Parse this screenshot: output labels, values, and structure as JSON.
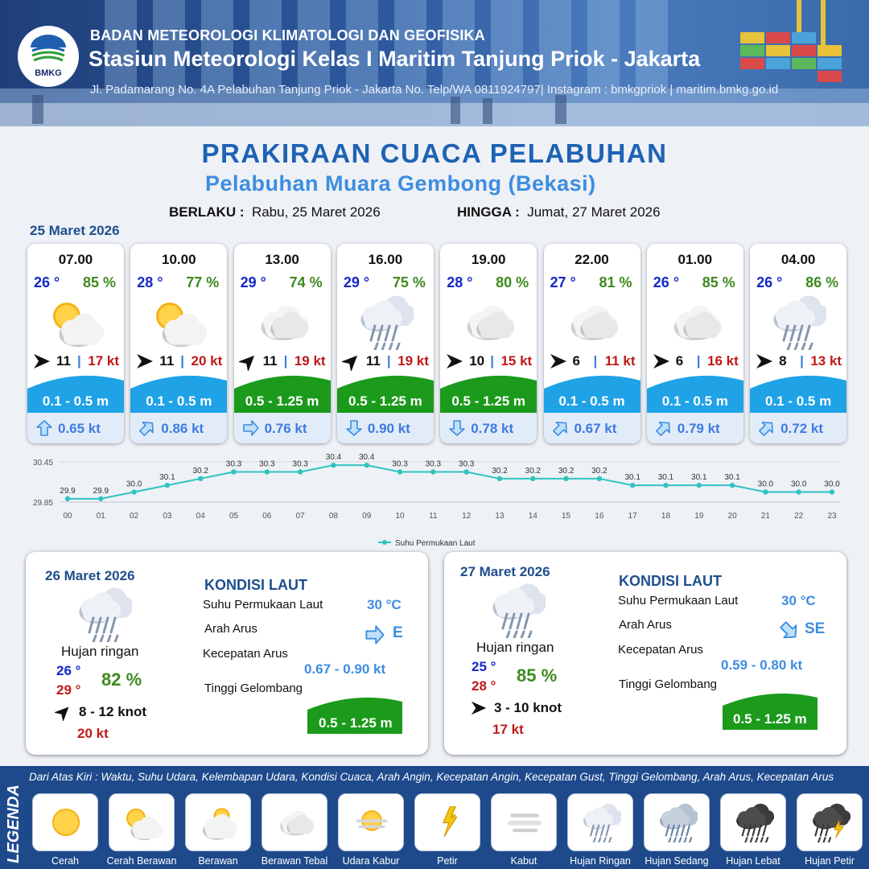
{
  "header": {
    "logo_text": "BMKG",
    "agency": "BADAN METEOROLOGI KLIMATOLOGI DAN GEOFISIKA",
    "station": "Stasiun Meteorologi Kelas I Maritim Tanjung Priok - Jakarta",
    "address": "Jl. Padamarang No. 4A Pelabuhan Tanjung Priok - Jakarta No. Telp/WA 0811924797| Instagram : bmkgpriok | maritim.bmkg.go.id"
  },
  "title": "PRAKIRAAN CUACA PELABUHAN",
  "subtitle": "Pelabuhan Muara Gembong (Bekasi)",
  "validity": {
    "from_label": "BERLAKU :",
    "from_value": "Rabu, 25 Maret 2026",
    "to_label": "HINGGA :",
    "to_value": "Jumat, 27 Maret 2026"
  },
  "today_date": "25 Maret 2026",
  "forecasts": [
    {
      "time": "07.00",
      "temp": "26 °",
      "hum": "85 %",
      "icon": "cerah-berawan",
      "wind_dir": "east",
      "wind": "11",
      "gust": "17 kt",
      "wave": "0.1 - 0.5 m",
      "wave_level": "low",
      "cur_dir": "north",
      "current": "0.65 kt"
    },
    {
      "time": "10.00",
      "temp": "28 °",
      "hum": "77 %",
      "icon": "cerah-berawan",
      "wind_dir": "east",
      "wind": "11",
      "gust": "20 kt",
      "wave": "0.1 - 0.5 m",
      "wave_level": "low",
      "cur_dir": "northeast",
      "current": "0.86 kt"
    },
    {
      "time": "13.00",
      "temp": "29 °",
      "hum": "74 %",
      "icon": "berawan-tebal",
      "wind_dir": "northeast",
      "wind": "11",
      "gust": "19 kt",
      "wave": "0.5 - 1.25 m",
      "wave_level": "moderate",
      "cur_dir": "east",
      "current": "0.76 kt"
    },
    {
      "time": "16.00",
      "temp": "29 °",
      "hum": "75 %",
      "icon": "hujan-ringan",
      "wind_dir": "northeast",
      "wind": "11",
      "gust": "19 kt",
      "wave": "0.5 - 1.25 m",
      "wave_level": "moderate",
      "cur_dir": "south",
      "current": "0.90 kt"
    },
    {
      "time": "19.00",
      "temp": "28 °",
      "hum": "80 %",
      "icon": "berawan-tebal",
      "wind_dir": "east",
      "wind": "10",
      "gust": "15 kt",
      "wave": "0.5 - 1.25 m",
      "wave_level": "moderate",
      "cur_dir": "south",
      "current": "0.78 kt"
    },
    {
      "time": "22.00",
      "temp": "27 °",
      "hum": "81 %",
      "icon": "berawan-tebal",
      "wind_dir": "east",
      "wind": "6",
      "gust": "11 kt",
      "wave": "0.1 - 0.5 m",
      "wave_level": "low",
      "cur_dir": "northeast",
      "current": "0.67 kt"
    },
    {
      "time": "01.00",
      "temp": "26 °",
      "hum": "85 %",
      "icon": "berawan-tebal",
      "wind_dir": "east",
      "wind": "6",
      "gust": "16 kt",
      "wave": "0.1 - 0.5 m",
      "wave_level": "low",
      "cur_dir": "northeast",
      "current": "0.79 kt"
    },
    {
      "time": "04.00",
      "temp": "26 °",
      "hum": "86 %",
      "icon": "hujan-ringan",
      "wind_dir": "east",
      "wind": "8",
      "gust": "13 kt",
      "wave": "0.1 - 0.5 m",
      "wave_level": "low",
      "cur_dir": "northeast",
      "current": "0.72 kt"
    }
  ],
  "chart_data": {
    "type": "line",
    "x": [
      "00",
      "01",
      "02",
      "03",
      "04",
      "05",
      "06",
      "07",
      "08",
      "09",
      "10",
      "11",
      "12",
      "13",
      "14",
      "15",
      "16",
      "17",
      "18",
      "19",
      "20",
      "21",
      "22",
      "23"
    ],
    "series": [
      {
        "name": "Suhu Permukaan Laut",
        "values": [
          29.9,
          29.9,
          30.0,
          30.1,
          30.2,
          30.3,
          30.3,
          30.3,
          30.4,
          30.4,
          30.3,
          30.3,
          30.3,
          30.2,
          30.2,
          30.2,
          30.2,
          30.1,
          30.1,
          30.1,
          30.1,
          30.0,
          30.0,
          30.0
        ]
      }
    ],
    "ylim": [
      29.85,
      30.45
    ],
    "y_ticks": [
      "30.45",
      "29.85"
    ],
    "grid": true,
    "legend": "bottom-center",
    "line_color": "#2ec4c0"
  },
  "days": [
    {
      "date": "26 Maret 2026",
      "icon": "hujan-ringan",
      "condition": "Hujan ringan",
      "tmin": "26 °",
      "tmax": "29 °",
      "hum": "82 %",
      "wind_dir": "northeast",
      "wind": "8  - 12 knot",
      "gust": "20 kt",
      "kondisi_title": "KONDISI LAUT",
      "sst_label": "Suhu Permukaan Laut",
      "sst": "30 °C",
      "cur_dir_label": "Arah Arus",
      "cur_dir": "east",
      "cur_dir_text": "E",
      "cur_speed_label": "Kecepatan Arus",
      "cur_speed": "0.67  - 0.90 kt",
      "wave_label": "Tinggi Gelombang",
      "wave": "0.5 - 1.25 m"
    },
    {
      "date": "27 Maret 2026",
      "icon": "hujan-ringan",
      "condition": "Hujan ringan",
      "tmin": "25 °",
      "tmax": "28 °",
      "hum": "85 %",
      "wind_dir": "east",
      "wind": "3  - 10 knot",
      "gust": "17 kt",
      "kondisi_title": "KONDISI LAUT",
      "sst_label": "Suhu Permukaan Laut",
      "sst": "30 °C",
      "cur_dir_label": "Arah Arus",
      "cur_dir": "southeast",
      "cur_dir_text": "SE",
      "cur_speed_label": "Kecepatan Arus",
      "cur_speed": "0.59  - 0.80 kt",
      "wave_label": "Tinggi Gelombang",
      "wave": "0.5 - 1.25 m"
    }
  ],
  "legend": {
    "side_label": "LEGENDA",
    "note": "Dari Atas Kiri : Waktu, Suhu Udara, Kelembapan Udara, Kondisi Cuaca, Arah Angin, Kecepatan Angin, Kecepatan Gust, Tinggi Gelombang, Arah Arus, Kecepatan Arus",
    "items": [
      {
        "label": "Cerah",
        "icon": "cerah"
      },
      {
        "label": "Cerah Berawan",
        "icon": "cerah-berawan"
      },
      {
        "label": "Berawan",
        "icon": "berawan"
      },
      {
        "label": "Berawan Tebal",
        "icon": "berawan-tebal"
      },
      {
        "label": "Udara Kabur",
        "icon": "udara-kabur"
      },
      {
        "label": "Petir",
        "icon": "petir"
      },
      {
        "label": "Kabut",
        "icon": "kabut"
      },
      {
        "label": "Hujan Ringan",
        "icon": "hujan-ringan"
      },
      {
        "label": "Hujan Sedang",
        "icon": "hujan-sedang"
      },
      {
        "label": "Hujan Lebat",
        "icon": "hujan-lebat"
      },
      {
        "label": "Hujan Petir",
        "icon": "hujan-petir"
      }
    ]
  },
  "colors": {
    "wave_low": "#1fa3e6",
    "wave_moderate": "#1c9a1c",
    "current_arrow": "#3d8de0"
  }
}
